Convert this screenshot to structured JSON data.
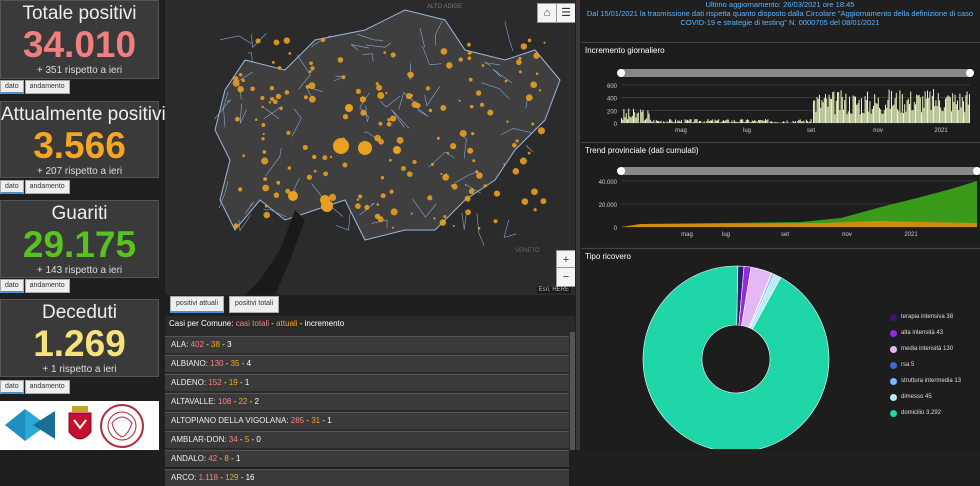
{
  "stats": [
    {
      "title": "Totale positivi",
      "value": "34.010",
      "delta": "+ 351 rispetto a ieri",
      "color": "#f08080"
    },
    {
      "title": "Attualmente positivi",
      "value": "3.566",
      "delta": "+ 207 rispetto a ieri",
      "color": "#f5a623"
    },
    {
      "title": "Guariti",
      "value": "29.175",
      "delta": "+ 143 rispetto a ieri",
      "color": "#5ac21e"
    },
    {
      "title": "Deceduti",
      "value": "1.269",
      "delta": "+ 1 rispetto a ieri",
      "color": "#f7e27a"
    }
  ],
  "stat_tabs": {
    "dato": "dato",
    "andamento": "andamento"
  },
  "header": {
    "line1": "Ultimo aggiornamento: 26/03/2021 ore 18:45",
    "line2": "Dal 15/01/2021 la trasmissione dati rispetta quanto disposto dalla Circolare \"Aggiornamento della definizione di caso",
    "line3": "COVID-19 e strategie di testing\" N. 0000705 del 08/01/2021"
  },
  "map": {
    "tabs": [
      "positivi attuali",
      "positivi totali"
    ],
    "attribution": "Esri, HERE",
    "region_label": "ALTO ADIGE",
    "region_label2": "VENETO",
    "zoom_in": "+",
    "zoom_out": "−"
  },
  "list": {
    "header_prefix": "Casi per Comune: ",
    "header_totali": "casi totali",
    "header_attuali": "attuali",
    "header_incremento": "incremento",
    "sep": " - ",
    "rows": [
      {
        "name": "ALA",
        "tot": "402",
        "att": "38",
        "inc": "3"
      },
      {
        "name": "ALBIANO",
        "tot": "130",
        "att": "35",
        "inc": "4"
      },
      {
        "name": "ALDENO",
        "tot": "152",
        "att": "19",
        "inc": "1"
      },
      {
        "name": "ALTAVALLE",
        "tot": "108",
        "att": "22",
        "inc": "2"
      },
      {
        "name": "ALTOPIANO DELLA VIGOLANA",
        "tot": "285",
        "att": "31",
        "inc": "1"
      },
      {
        "name": "AMBLAR-DON",
        "tot": "34",
        "att": "5",
        "inc": "0"
      },
      {
        "name": "ANDALO",
        "tot": "42",
        "att": "8",
        "inc": "1"
      },
      {
        "name": "ARCO",
        "tot": "1.118",
        "att": "129",
        "inc": "16"
      }
    ]
  },
  "incremento": {
    "title": "Incremento giornaliero",
    "yticks": [
      "600",
      "400",
      "200",
      "0"
    ],
    "xticks": [
      "mag",
      "lug",
      "set",
      "nov",
      "2021"
    ]
  },
  "trend": {
    "title": "Trend provinciale (dati cumulati)",
    "yticks": [
      "40.000",
      "20.000",
      "0"
    ],
    "xticks": [
      "mag",
      "lug",
      "set",
      "nov",
      "2021"
    ]
  },
  "ricovero": {
    "title": "Tipo ricovero",
    "legend": [
      {
        "label": "terapia intensiva 38",
        "color": "#3b1a6b",
        "value": 38
      },
      {
        "label": "alta intensità 43",
        "color": "#8b2be2",
        "value": 43
      },
      {
        "label": "media intensità 130",
        "color": "#e3b8f5",
        "value": 130
      },
      {
        "label": "rsa 5",
        "color": "#3d6bd6",
        "value": 5
      },
      {
        "label": "struttura intermedia 13",
        "color": "#7ab8ff",
        "value": 13
      },
      {
        "label": "dimesso 45",
        "color": "#bdeaf5",
        "value": 45
      },
      {
        "label": "domicilio 3.292",
        "color": "#1fd6a8",
        "value": 3292
      }
    ]
  },
  "colors": {
    "blue_text": "#5ab4ff",
    "chart_fill": "#e8f5c0",
    "green_area": "#3a9a1a",
    "orange_area": "#c8900a"
  }
}
